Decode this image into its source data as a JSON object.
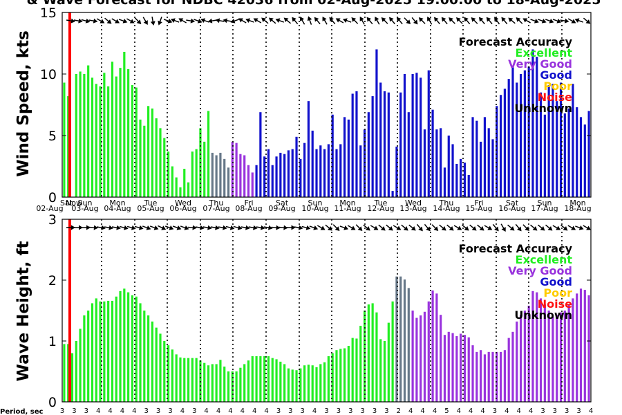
{
  "chart_data": {
    "type": "bar",
    "title": "& Wave Forecast for NDBC 42036 from 02-Aug-2025 19:00:00 to 18-Aug-2025",
    "days": [
      "Sat",
      "Sun",
      "Mon",
      "Tue",
      "Wed",
      "Thu",
      "Fri",
      "Sat",
      "Sun",
      "Mon",
      "Tue",
      "Wed",
      "Thu",
      "Fri",
      "Sat",
      "Sun",
      "Mon"
    ],
    "dates": [
      "02-Aug",
      "03-Aug",
      "04-Aug",
      "05-Aug",
      "06-Aug",
      "07-Aug",
      "08-Aug",
      "09-Aug",
      "10-Aug",
      "11-Aug",
      "12-Aug",
      "13-Aug",
      "14-Aug",
      "15-Aug",
      "16-Aug",
      "17-Aug",
      "18-Aug"
    ],
    "now_label": "Now",
    "legend": {
      "title": "Forecast Accuracy",
      "items": [
        {
          "label": "Excellent",
          "color": "#22ee22"
        },
        {
          "label": "Very Good",
          "color": "#9933dd"
        },
        {
          "label": "Good",
          "color": "#1111cc"
        },
        {
          "label": "Poor",
          "color": "#ffcc00"
        },
        {
          "label": "Noise",
          "color": "#ff1111"
        },
        {
          "label": "Unknown",
          "color": "#000000"
        }
      ]
    },
    "wind": {
      "ylabel": "Wind Speed, kts",
      "ylim": [
        0,
        15
      ],
      "yticks": [
        0,
        5,
        10,
        15
      ],
      "values": [
        9.3,
        8.2,
        0,
        10,
        10.2,
        10,
        10.7,
        9.7,
        9.2,
        9,
        10.1,
        9,
        11,
        9.8,
        10.5,
        11.8,
        10.4,
        9.1,
        8.9,
        6.3,
        5.8,
        7.4,
        7.2,
        6.4,
        5.6,
        4.8,
        3.7,
        2.5,
        1.6,
        0.8,
        2.3,
        1.2,
        3.7,
        3.9,
        5.6,
        4.5,
        7,
        3.6,
        3.4,
        3.6,
        3.1,
        2.4,
        4.5,
        4.4,
        3.5,
        3.4,
        2.6,
        2,
        2.6,
        6.9,
        3.3,
        3.9,
        2.6,
        3.3,
        3.6,
        3.5,
        3.8,
        3.9,
        4.9,
        3.1,
        4.4,
        7.8,
        5.4,
        3.9,
        4.2,
        3.9,
        4.3,
        6.7,
        3.9,
        4.3,
        6.5,
        6.3,
        8.4,
        8.6,
        4.2,
        5.5,
        6.9,
        8.2,
        12,
        9.3,
        8.6,
        8.5,
        0.5,
        4.1,
        8.5,
        10,
        6.9,
        10,
        10.1,
        9.7,
        5.5,
        10.3,
        7.1,
        5.5,
        5.6,
        2.4,
        5,
        4.3,
        2.7,
        3.1,
        2.8,
        1.8,
        6.5,
        6.2,
        4.5,
        6.5,
        5.6,
        4.7,
        7.4,
        8.3,
        8.8,
        9.6,
        10.6,
        9.3,
        10,
        10.3,
        10.6,
        12,
        11.4,
        8.5,
        6.7,
        9.1,
        9.2,
        7.8,
        9.3,
        6.8,
        7.2,
        9.2,
        7.3,
        6.5,
        5.9,
        7
      ]
    },
    "wave": {
      "ylabel": "Wave Height, ft",
      "ylim": [
        0,
        3
      ],
      "yticks": [
        0,
        1,
        2,
        3
      ],
      "values": [
        0.95,
        0.95,
        0.8,
        1,
        1.2,
        1.42,
        1.5,
        1.62,
        1.7,
        1.65,
        1.65,
        1.66,
        1.66,
        1.73,
        1.82,
        1.86,
        1.8,
        1.75,
        1.73,
        1.62,
        1.5,
        1.42,
        1.32,
        1.22,
        1.12,
        1,
        0.93,
        0.86,
        0.78,
        0.73,
        0.72,
        0.72,
        0.72,
        0.72,
        0.68,
        0.64,
        0.6,
        0.62,
        0.62,
        0.69,
        0.58,
        0.5,
        0.5,
        0.5,
        0.56,
        0.62,
        0.68,
        0.75,
        0.75,
        0.75,
        0.75,
        0.75,
        0.72,
        0.7,
        0.66,
        0.62,
        0.55,
        0.53,
        0.52,
        0.55,
        0.6,
        0.61,
        0.6,
        0.57,
        0.62,
        0.65,
        0.75,
        0.8,
        0.85,
        0.87,
        0.88,
        0.92,
        1.05,
        1.04,
        1.25,
        1.5,
        1.6,
        1.62,
        1.47,
        1.03,
        1,
        1.3,
        1.65,
        2.06,
        2.06,
        2.01,
        1.87,
        1.5,
        1.38,
        1.42,
        1.48,
        1.65,
        1.83,
        1.78,
        1.43,
        1.1,
        1.15,
        1.13,
        1.08,
        1.12,
        1.1,
        1.06,
        0.93,
        0.82,
        0.85,
        0.78,
        0.82,
        0.82,
        0.82,
        0.82,
        0.85,
        1.05,
        1.15,
        1.32,
        1.43,
        1.5,
        1.58,
        1.82,
        1.8,
        1.7,
        1.6,
        1.5,
        1.4,
        1.43,
        1.47,
        1.5,
        1.6,
        1.7,
        1.78,
        1.86,
        1.84,
        1.75
      ]
    },
    "period_label": "Period, sec",
    "periods": [
      3,
      3,
      3,
      4,
      4,
      4,
      4,
      3,
      3,
      3,
      4,
      3,
      4,
      4,
      4,
      4,
      4,
      4,
      3,
      3,
      3,
      4,
      3,
      3,
      3,
      3,
      3,
      3,
      2,
      4,
      4,
      4,
      5,
      4,
      4,
      4,
      3,
      4,
      4,
      4,
      3,
      3,
      3,
      3,
      4
    ],
    "colors": {
      "excellent": "#22ee22",
      "verygood": "#9933dd",
      "good": "#1111cc",
      "grey": "#667788",
      "now": "#ff0000"
    }
  }
}
